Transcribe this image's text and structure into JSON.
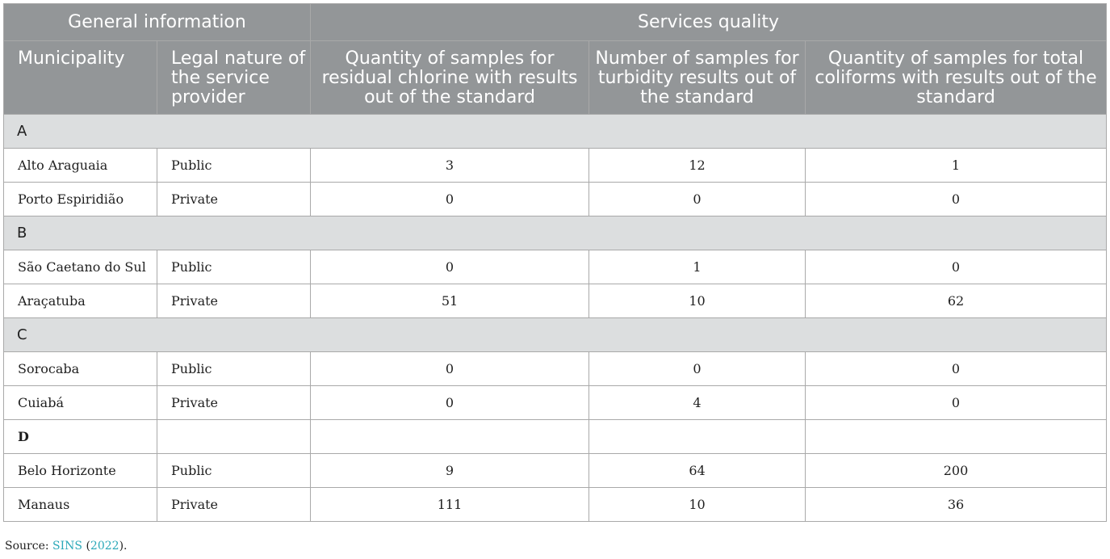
{
  "header": {
    "group1": "General information",
    "group2": "Services quality",
    "columns": [
      "Municipality",
      "Legal nature of the service provider",
      "Quantity of samples for residual chlorine with results out of the standard",
      "Number of samples for turbidity results out of the standard",
      "Quantity of samples for total coliforms with results out of the standard"
    ]
  },
  "groups": [
    {
      "label": "A",
      "rows": [
        {
          "municipality": "Alto Araguaia",
          "nature": "Public",
          "chlorine": "3",
          "turbidity": "12",
          "coliforms": "1"
        },
        {
          "municipality": "Porto Espiridião",
          "nature": "Private",
          "chlorine": "0",
          "turbidity": "0",
          "coliforms": "0"
        }
      ]
    },
    {
      "label": "B",
      "rows": [
        {
          "municipality": "São Caetano do Sul",
          "nature": "Public",
          "chlorine": "0",
          "turbidity": "1",
          "coliforms": "0"
        },
        {
          "municipality": "Araçatuba",
          "nature": "Private",
          "chlorine": "51",
          "turbidity": "10",
          "coliforms": "62"
        }
      ]
    },
    {
      "label": "C",
      "rows": [
        {
          "municipality": "Sorocaba",
          "nature": "Public",
          "chlorine": "0",
          "turbidity": "0",
          "coliforms": "0"
        },
        {
          "municipality": "Cuiabá",
          "nature": "Private",
          "chlorine": "0",
          "turbidity": "4",
          "coliforms": "0"
        }
      ]
    },
    {
      "label": "D",
      "rows": [
        {
          "municipality": "Belo Horizonte",
          "nature": "Public",
          "chlorine": "9",
          "turbidity": "64",
          "coliforms": "200"
        },
        {
          "municipality": "Manaus",
          "nature": "Private",
          "chlorine": "111",
          "turbidity": "10",
          "coliforms": "36"
        }
      ]
    }
  ],
  "source": {
    "prefix": "Source: ",
    "link": "SINS",
    "open": " (",
    "year": "2022",
    "close": ")."
  }
}
